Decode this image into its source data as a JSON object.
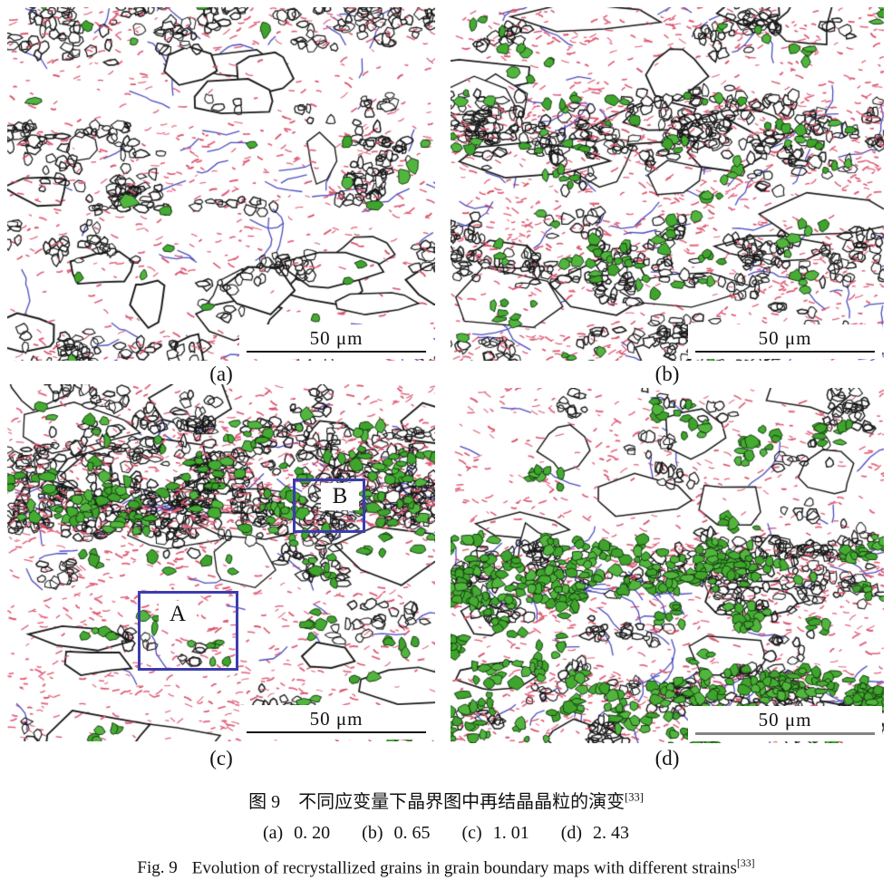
{
  "figure": {
    "panels": [
      {
        "key": "a",
        "label": "(a)",
        "scale_bar": "50 μm",
        "strain": "0. 20"
      },
      {
        "key": "b",
        "label": "(b)",
        "scale_bar": "50 μm",
        "strain": "0. 65"
      },
      {
        "key": "c",
        "label": "(c)",
        "scale_bar": "50 μm",
        "strain": "1. 01",
        "annotations": {
          "region_a": "A",
          "region_b": "B"
        }
      },
      {
        "key": "d",
        "label": "(d)",
        "scale_bar": "50 μm",
        "strain": "2. 43"
      }
    ],
    "caption": {
      "zh_prefix": "图 9",
      "zh_text": "不同应变量下晶界图中再结晶晶粒的演变",
      "ref": "[33]",
      "en_prefix": "Fig. 9",
      "en_text": "Evolution of recrystallized grains in grain boundary maps with different strains"
    },
    "legend_colors": {
      "grain_boundary_black": "#181818",
      "low_angle_red": "#d9536b",
      "substructure_blue": "#4c4cc0",
      "recrystallized_green": "#45ac32",
      "annotation_blue": "#3c3cae",
      "scalebar_gray": "#838383"
    }
  }
}
